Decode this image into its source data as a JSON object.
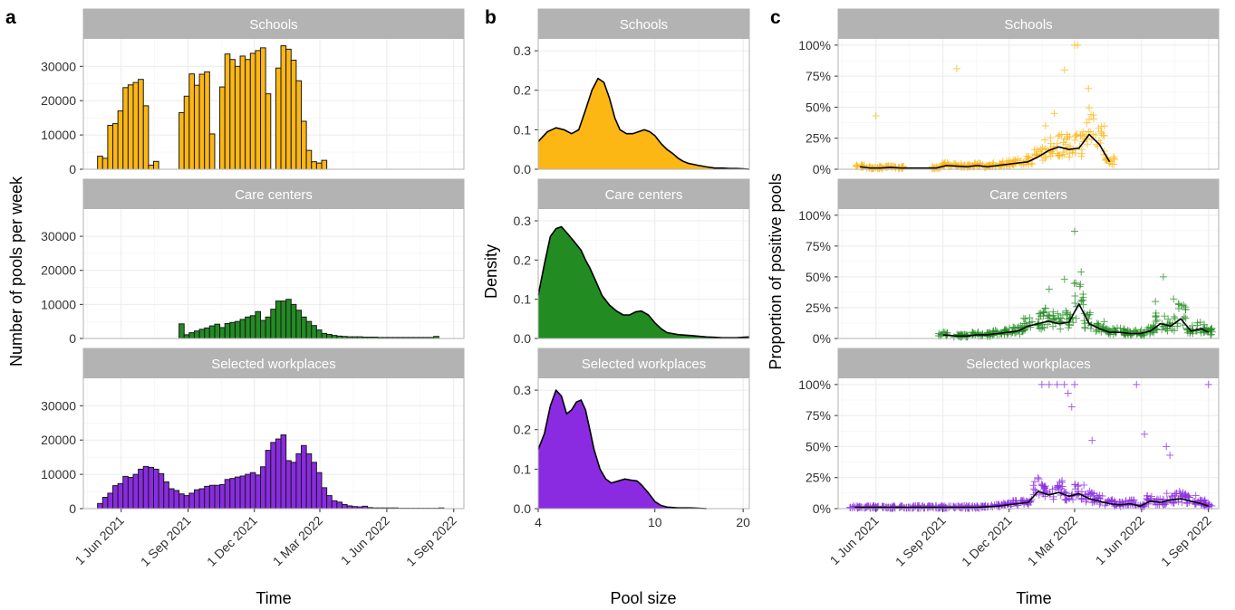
{
  "colors": {
    "schools": "#FDB714",
    "care_centers": "#228B22",
    "selected_workplaces": "#8A2BE2",
    "strip": "#B3B3B3",
    "grid": "#EBEBEB",
    "panel_border": "#B3B3B3",
    "line": "#000000"
  },
  "facets": [
    "Schools",
    "Care centers",
    "Selected workplaces"
  ],
  "chart_data": [
    {
      "type": "bar",
      "panel": "a",
      "xlabel": "Time",
      "ylabel": "Number of pools per week",
      "xlim": [
        "2021-04-10",
        "2022-09-15"
      ],
      "ylim": [
        0,
        38000
      ],
      "x_ticks": [
        "2021-06-01",
        "2021-09-01",
        "2021-12-01",
        "2022-03-01",
        "2022-06-01",
        "2022-09-01"
      ],
      "x_tick_labels": [
        "1 Jun 2021",
        "1 Sep 2021",
        "1 Dec 2021",
        "1 Mar 2022",
        "1 Jun 2022",
        "1 Sep 2022"
      ],
      "y_ticks": [
        0,
        10000,
        20000,
        30000
      ],
      "grid": true,
      "first_week": "2021-05-03",
      "series": [
        {
          "name": "Schools",
          "values": [
            3800,
            3200,
            12800,
            13300,
            17000,
            23800,
            24600,
            25300,
            26200,
            18500,
            1200,
            2300,
            0,
            0,
            0,
            0,
            16500,
            21300,
            27800,
            24500,
            27700,
            28400,
            10300,
            0,
            24000,
            33600,
            32000,
            30000,
            33000,
            32000,
            33800,
            34600,
            35400,
            22000,
            0,
            29500,
            36000,
            35000,
            31800,
            25800,
            14000,
            5500,
            2200,
            1800,
            2600,
            0
          ]
        },
        {
          "name": "Care centers",
          "values": [
            0,
            0,
            0,
            0,
            0,
            0,
            0,
            0,
            0,
            0,
            0,
            0,
            0,
            0,
            0,
            0,
            4300,
            1100,
            1700,
            2200,
            2700,
            3100,
            3700,
            4200,
            3200,
            4400,
            4700,
            5000,
            5600,
            6300,
            6700,
            7900,
            5300,
            6300,
            8600,
            11000,
            11000,
            11500,
            10000,
            8300,
            6300,
            5000,
            3800,
            2500,
            1500,
            1200,
            900,
            700,
            600,
            500,
            500,
            500,
            400,
            400,
            400,
            300,
            300,
            300,
            300,
            300,
            300,
            300,
            300,
            300,
            300,
            300,
            600
          ]
        },
        {
          "name": "Selected workplaces",
          "values": [
            1500,
            3300,
            4500,
            6700,
            7300,
            9400,
            9100,
            10000,
            11500,
            12300,
            12000,
            11500,
            10200,
            7800,
            5800,
            5300,
            4300,
            3800,
            4500,
            5500,
            5800,
            6500,
            6800,
            6800,
            7000,
            8500,
            8800,
            9200,
            9500,
            10000,
            10500,
            9800,
            12200,
            17000,
            19300,
            20300,
            21500,
            14000,
            13500,
            16000,
            18400,
            16000,
            13500,
            10500,
            6100,
            3800,
            2300,
            1900,
            1200,
            800,
            600,
            500,
            700,
            300,
            200,
            200,
            200,
            200,
            200,
            100,
            100,
            100,
            100,
            100,
            100,
            100,
            100,
            200
          ]
        }
      ]
    },
    {
      "type": "area",
      "panel": "b",
      "xlabel": "Pool size",
      "ylabel": "Density",
      "x_scale": "log",
      "xlim": [
        4,
        21
      ],
      "ylim": [
        0,
        0.33
      ],
      "x_ticks": [
        4,
        10,
        20
      ],
      "y_ticks": [
        0.0,
        0.1,
        0.2,
        0.3
      ],
      "y_tick_labels": [
        "0.0",
        "0.1",
        "0.2",
        "0.3"
      ],
      "grid": true,
      "series": [
        {
          "name": "Schools",
          "x": [
            4,
            4.3,
            4.6,
            4.9,
            5.2,
            5.5,
            5.8,
            6.1,
            6.4,
            6.7,
            7,
            7.3,
            7.6,
            8,
            8.4,
            8.8,
            9.2,
            9.6,
            10,
            10.5,
            11,
            11.5,
            12,
            12.5,
            13,
            14,
            15,
            16,
            17,
            18,
            19,
            20,
            21
          ],
          "y": [
            0.07,
            0.095,
            0.105,
            0.1,
            0.09,
            0.1,
            0.15,
            0.2,
            0.23,
            0.22,
            0.18,
            0.13,
            0.1,
            0.09,
            0.09,
            0.095,
            0.1,
            0.095,
            0.085,
            0.065,
            0.05,
            0.04,
            0.028,
            0.02,
            0.015,
            0.01,
            0.006,
            0.003,
            0.003,
            0.002,
            0.002,
            0.001,
            0.0
          ]
        },
        {
          "name": "Care centers",
          "x": [
            4,
            4.2,
            4.4,
            4.6,
            4.8,
            5,
            5.2,
            5.4,
            5.6,
            5.8,
            6,
            6.3,
            6.6,
            7,
            7.4,
            7.8,
            8.2,
            8.6,
            9,
            9.5,
            10,
            10.5,
            11,
            12,
            13,
            14,
            15,
            16,
            17,
            18,
            19,
            20,
            21
          ],
          "y": [
            0.11,
            0.19,
            0.26,
            0.28,
            0.285,
            0.27,
            0.255,
            0.24,
            0.225,
            0.2,
            0.18,
            0.145,
            0.11,
            0.085,
            0.07,
            0.06,
            0.06,
            0.068,
            0.07,
            0.06,
            0.04,
            0.025,
            0.015,
            0.01,
            0.008,
            0.006,
            0.004,
            0.003,
            0.002,
            0.002,
            0.002,
            0.003,
            0.004
          ]
        },
        {
          "name": "Selected workplaces",
          "x": [
            4,
            4.2,
            4.4,
            4.6,
            4.8,
            5,
            5.2,
            5.4,
            5.6,
            5.8,
            6,
            6.2,
            6.5,
            6.8,
            7.1,
            7.5,
            7.9,
            8.3,
            8.7,
            9,
            9.5,
            10,
            10.5,
            11,
            12,
            13,
            14,
            15
          ],
          "y": [
            0.15,
            0.19,
            0.26,
            0.3,
            0.285,
            0.24,
            0.25,
            0.27,
            0.275,
            0.25,
            0.2,
            0.15,
            0.1,
            0.075,
            0.065,
            0.07,
            0.075,
            0.072,
            0.07,
            0.06,
            0.04,
            0.018,
            0.008,
            0.004,
            0.002,
            0.002,
            0.001,
            0.0
          ]
        }
      ]
    },
    {
      "type": "scatter",
      "panel": "c",
      "xlabel": "Time",
      "ylabel": "Proportion of positive pools",
      "xlim": [
        "2021-04-10",
        "2022-09-15"
      ],
      "ylim": [
        0,
        1.05
      ],
      "x_ticks": [
        "2021-06-01",
        "2021-09-01",
        "2021-12-01",
        "2022-03-01",
        "2022-06-01",
        "2022-09-01"
      ],
      "x_tick_labels": [
        "1 Jun 2021",
        "1 Sep 2021",
        "1 Dec 2021",
        "1 Mar 2022",
        "1 Jun 2022",
        "1 Sep 2022"
      ],
      "y_ticks": [
        0,
        0.25,
        0.5,
        0.75,
        1.0
      ],
      "y_tick_labels": [
        "0%",
        "25%",
        "50%",
        "75%",
        "100%"
      ],
      "grid": true,
      "series": [
        {
          "name": "Schools",
          "weekly_mean": {
            "x": [
              "2021-05-10",
              "2021-05-24",
              "2021-06-07",
              "2021-06-21",
              "2021-07-05",
              "2021-08-23",
              "2021-09-06",
              "2021-09-20",
              "2021-10-04",
              "2021-10-18",
              "2021-11-01",
              "2021-11-15",
              "2021-11-29",
              "2021-12-13",
              "2021-12-27",
              "2022-01-10",
              "2022-01-24",
              "2022-02-07",
              "2022-02-21",
              "2022-03-07",
              "2022-03-21",
              "2022-04-04",
              "2022-04-18"
            ],
            "y": [
              0.02,
              0.01,
              0.01,
              0.015,
              0.01,
              0.01,
              0.03,
              0.025,
              0.02,
              0.03,
              0.02,
              0.03,
              0.04,
              0.05,
              0.06,
              0.1,
              0.15,
              0.18,
              0.16,
              0.17,
              0.28,
              0.2,
              0.06
            ]
          },
          "points": {
            "x": [
              "2021-06-01",
              "2021-09-20",
              "2022-03-01",
              "2022-03-05",
              "2022-02-15",
              "2022-03-20",
              "2022-01-20",
              "2022-02-01"
            ],
            "y": [
              0.43,
              0.81,
              1.0,
              1.0,
              0.8,
              0.65,
              0.35,
              0.45
            ]
          }
        },
        {
          "name": "Care centers",
          "weekly_mean": {
            "x": [
              "2021-09-01",
              "2021-09-20",
              "2021-10-04",
              "2021-10-18",
              "2021-11-01",
              "2021-11-15",
              "2021-11-29",
              "2021-12-13",
              "2021-12-27",
              "2022-01-10",
              "2022-01-24",
              "2022-02-07",
              "2022-02-21",
              "2022-03-07",
              "2022-03-21",
              "2022-04-04",
              "2022-04-18",
              "2022-05-02",
              "2022-05-16",
              "2022-05-30",
              "2022-06-13",
              "2022-06-27",
              "2022-07-11",
              "2022-07-25",
              "2022-08-08",
              "2022-08-22",
              "2022-09-01"
            ],
            "y": [
              0.03,
              0.02,
              0.02,
              0.03,
              0.03,
              0.04,
              0.05,
              0.06,
              0.1,
              0.12,
              0.14,
              0.12,
              0.13,
              0.28,
              0.12,
              0.08,
              0.05,
              0.05,
              0.04,
              0.04,
              0.06,
              0.12,
              0.1,
              0.16,
              0.06,
              0.08,
              0.05
            ]
          },
          "points": {
            "x": [
              "2022-03-01",
              "2022-03-10",
              "2022-02-15",
              "2022-07-01",
              "2022-07-15",
              "2022-01-25",
              "2022-06-20"
            ],
            "y": [
              0.87,
              0.54,
              0.48,
              0.5,
              0.32,
              0.4,
              0.3
            ]
          }
        },
        {
          "name": "Selected workplaces",
          "weekly_mean": {
            "x": [
              "2021-05-03",
              "2021-05-17",
              "2021-05-31",
              "2021-06-14",
              "2021-06-28",
              "2021-07-12",
              "2021-07-26",
              "2021-08-09",
              "2021-08-23",
              "2021-09-06",
              "2021-09-20",
              "2021-10-04",
              "2021-10-18",
              "2021-11-01",
              "2021-11-15",
              "2021-11-29",
              "2021-12-13",
              "2021-12-27",
              "2022-01-10",
              "2022-01-24",
              "2022-02-07",
              "2022-02-21",
              "2022-03-07",
              "2022-03-21",
              "2022-04-04",
              "2022-04-18",
              "2022-05-02",
              "2022-05-16",
              "2022-05-30",
              "2022-06-13",
              "2022-06-27",
              "2022-07-11",
              "2022-07-25",
              "2022-08-08",
              "2022-08-22",
              "2022-09-01"
            ],
            "y": [
              0.01,
              0.01,
              0.01,
              0.01,
              0.01,
              0.01,
              0.01,
              0.01,
              0.01,
              0.01,
              0.01,
              0.01,
              0.01,
              0.015,
              0.02,
              0.03,
              0.04,
              0.05,
              0.14,
              0.11,
              0.13,
              0.1,
              0.12,
              0.08,
              0.06,
              0.04,
              0.03,
              0.04,
              0.02,
              0.06,
              0.05,
              0.07,
              0.08,
              0.06,
              0.04,
              0.02
            ]
          },
          "points": {
            "x": [
              "2022-01-15",
              "2022-01-25",
              "2022-02-05",
              "2022-02-15",
              "2022-03-01",
              "2022-05-25",
              "2022-09-01",
              "2022-02-20",
              "2022-02-25",
              "2022-03-25",
              "2022-07-05",
              "2022-07-10",
              "2022-06-05"
            ],
            "y": [
              1.0,
              1.0,
              1.0,
              1.0,
              1.0,
              1.0,
              1.0,
              0.93,
              0.82,
              0.55,
              0.5,
              0.43,
              0.6
            ]
          }
        }
      ]
    }
  ]
}
